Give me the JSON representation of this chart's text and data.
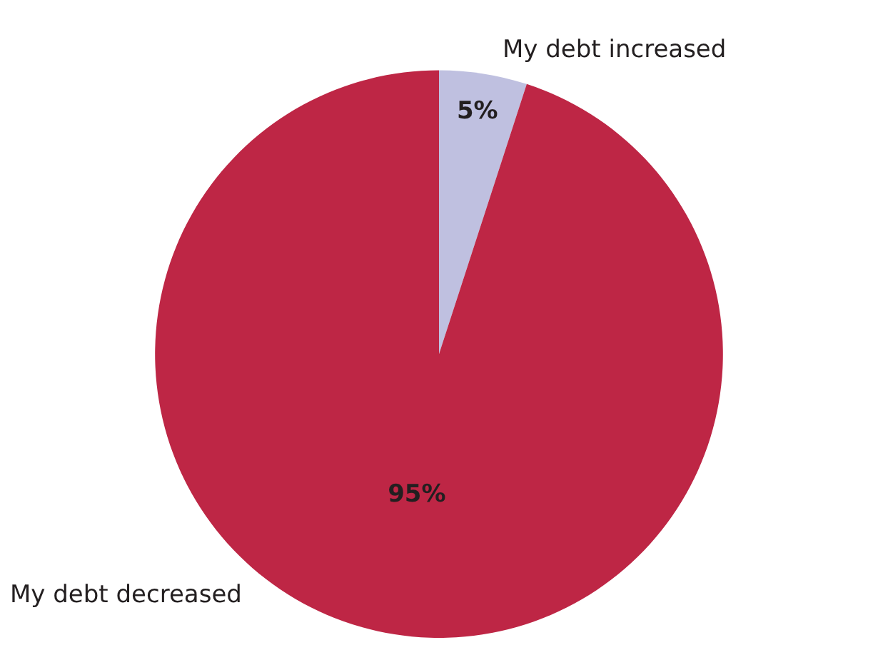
{
  "chart_data": {
    "type": "pie",
    "categories": [
      "My debt increased",
      "My debt decreased"
    ],
    "values": [
      5,
      95
    ],
    "colors": [
      "#bfc0e0",
      "#be2645"
    ],
    "value_labels": [
      "5%",
      "95%"
    ],
    "legend": false
  }
}
